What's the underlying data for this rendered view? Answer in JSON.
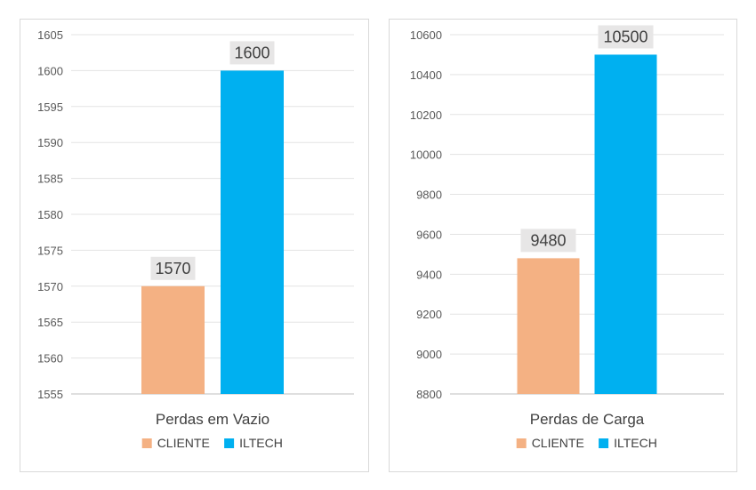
{
  "chart_data": [
    {
      "type": "bar",
      "categories": [
        "Perdas em Vazio"
      ],
      "series": [
        {
          "name": "CLIENTE",
          "values": [
            1570
          ],
          "color": "#F4B183"
        },
        {
          "name": "ILTECH",
          "values": [
            1600
          ],
          "color": "#00B0F0"
        }
      ],
      "ylim": [
        1555,
        1605
      ],
      "yticks": [
        1555,
        1560,
        1565,
        1570,
        1575,
        1580,
        1585,
        1590,
        1595,
        1600,
        1605
      ],
      "grid": true,
      "legend": "bottom",
      "data_labels": [
        "1570",
        "1600"
      ]
    },
    {
      "type": "bar",
      "categories": [
        "Perdas de Carga"
      ],
      "series": [
        {
          "name": "CLIENTE",
          "values": [
            9480
          ],
          "color": "#F4B183"
        },
        {
          "name": "ILTECH",
          "values": [
            10500
          ],
          "color": "#00B0F0"
        }
      ],
      "ylim": [
        8800,
        10600
      ],
      "yticks": [
        8800,
        9000,
        9200,
        9400,
        9600,
        9800,
        10000,
        10200,
        10400,
        10600
      ],
      "grid": true,
      "legend": "bottom",
      "data_labels": [
        "9480",
        "10500"
      ]
    }
  ]
}
